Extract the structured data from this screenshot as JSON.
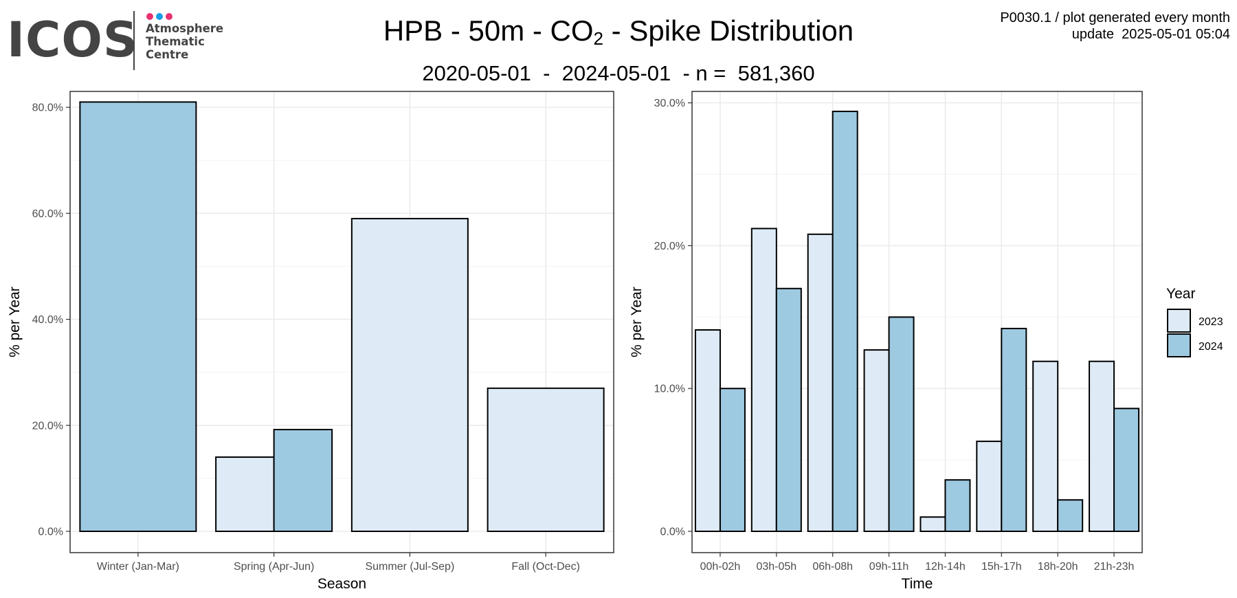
{
  "header": {
    "title_main": "HPB - 50m - CO",
    "title_subscript": "2",
    "title_suffix": " - Spike Distribution",
    "subtitle": "2020-05-01  -  2024-05-01  - n =  581,360",
    "meta_line1": "P0030.1 / plot generated every month",
    "meta_line2": "update  2025-05-01 05:04"
  },
  "logo": {
    "word": "ICOS",
    "line1": "Atmosphere",
    "line2": "Thematic",
    "line3": "Centre",
    "dot_colors": [
      "#e8336f",
      "#1a9de6",
      "#e8336f"
    ]
  },
  "legend": {
    "title": "Year",
    "entries": [
      {
        "label": "2023",
        "color": "#deebf7"
      },
      {
        "label": "2024",
        "color": "#9ecae1"
      }
    ]
  },
  "chart_data": [
    {
      "type": "bar",
      "categories": [
        "Winter (Jan-Mar)",
        "Spring (Apr-Jun)",
        "Summer (Jul-Sep)",
        "Fall (Oct-Dec)"
      ],
      "series": [
        {
          "name": "2023",
          "values": [
            null,
            14.0,
            59.0,
            27.0
          ]
        },
        {
          "name": "2024",
          "values": [
            81.0,
            19.2,
            null,
            null
          ]
        }
      ],
      "xlabel": "Season",
      "ylabel": "% per Year",
      "ylim": [
        0,
        83
      ],
      "yticks": [
        0,
        20,
        40,
        60,
        80
      ],
      "ytick_labels": [
        "0.0%",
        "20.0%",
        "40.0%",
        "60.0%",
        "80.0%"
      ],
      "grid": true
    },
    {
      "type": "bar",
      "categories": [
        "00h-02h",
        "03h-05h",
        "06h-08h",
        "09h-11h",
        "12h-14h",
        "15h-17h",
        "18h-20h",
        "21h-23h"
      ],
      "series": [
        {
          "name": "2023",
          "values": [
            14.1,
            21.2,
            20.8,
            12.7,
            1.0,
            6.3,
            11.9,
            11.9
          ]
        },
        {
          "name": "2024",
          "values": [
            10.0,
            17.0,
            29.4,
            15.0,
            3.6,
            14.2,
            2.2,
            8.6
          ]
        }
      ],
      "xlabel": "Time",
      "ylabel": "% per Year",
      "ylim": [
        0,
        30.8
      ],
      "yticks": [
        0,
        10,
        20,
        30
      ],
      "ytick_labels": [
        "0.0%",
        "10.0%",
        "20.0%",
        "30.0%"
      ],
      "grid": true
    }
  ]
}
